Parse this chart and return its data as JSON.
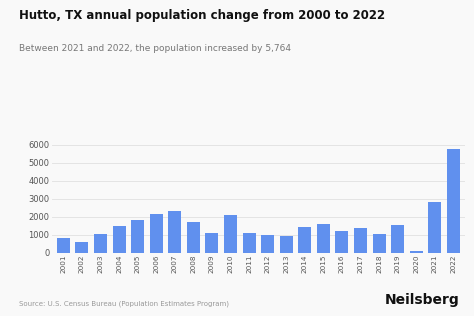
{
  "title": "Hutto, TX annual population change from 2000 to 2022",
  "subtitle": "Between 2021 and 2022, the population increased by 5,764",
  "source": "Source: U.S. Census Bureau (Population Estimates Program)",
  "branding": "Neilsberg",
  "years": [
    2001,
    2002,
    2003,
    2004,
    2005,
    2006,
    2007,
    2008,
    2009,
    2010,
    2011,
    2012,
    2013,
    2014,
    2015,
    2016,
    2017,
    2018,
    2019,
    2020,
    2021,
    2022
  ],
  "values": [
    850,
    620,
    1050,
    1500,
    1800,
    2150,
    2300,
    1700,
    1100,
    2100,
    1100,
    980,
    960,
    1450,
    1600,
    1230,
    1370,
    1060,
    1520,
    120,
    2820,
    5764
  ],
  "bar_color": "#6090ee",
  "background_color": "#f9f9f9",
  "grid_color": "#e0e0e0",
  "title_color": "#111111",
  "subtitle_color": "#777777",
  "source_color": "#999999",
  "branding_color": "#111111",
  "ylim": [
    0,
    6500
  ],
  "yticks": [
    0,
    1000,
    2000,
    3000,
    4000,
    5000,
    6000
  ]
}
